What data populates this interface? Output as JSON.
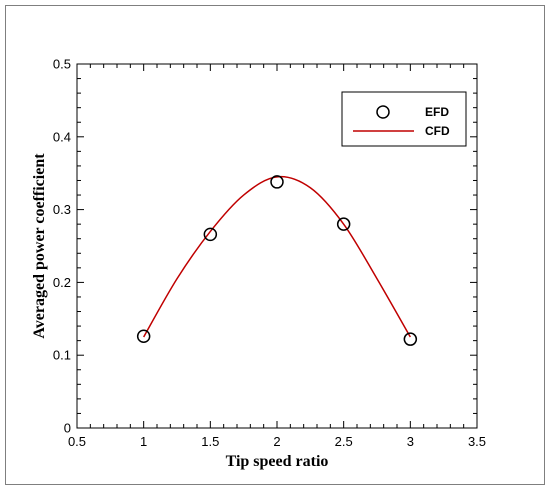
{
  "chart_data": {
    "type": "scatter",
    "xlabel": "Tip speed ratio",
    "ylabel": "Averaged power coefficient",
    "xlim": [
      0.5,
      3.5
    ],
    "ylim": [
      0,
      0.5
    ],
    "xticks": [
      "0.5",
      "1",
      "1.5",
      "2",
      "2.5",
      "3",
      "3.5"
    ],
    "yticks": [
      "0",
      "0.1",
      "0.2",
      "0.3",
      "0.4",
      "0.5"
    ],
    "xtick_values": [
      0.5,
      1,
      1.5,
      2,
      2.5,
      3,
      3.5
    ],
    "ytick_values": [
      0,
      0.1,
      0.2,
      0.3,
      0.4,
      0.5
    ],
    "grid": false,
    "legend_position": "top-right",
    "series": [
      {
        "name": "EFD",
        "style": "markers",
        "marker": "open-circle",
        "color": "#000000",
        "x": [
          1.0,
          1.5,
          2.0,
          2.5,
          3.0
        ],
        "y": [
          0.126,
          0.266,
          0.338,
          0.28,
          0.122
        ]
      },
      {
        "name": "CFD",
        "style": "line",
        "color": "#c00000",
        "x": [
          1.0,
          1.25,
          1.5,
          1.75,
          2.0,
          2.25,
          2.5,
          2.75,
          3.0
        ],
        "y": [
          0.125,
          0.205,
          0.27,
          0.32,
          0.345,
          0.33,
          0.28,
          0.205,
          0.125
        ]
      }
    ]
  }
}
